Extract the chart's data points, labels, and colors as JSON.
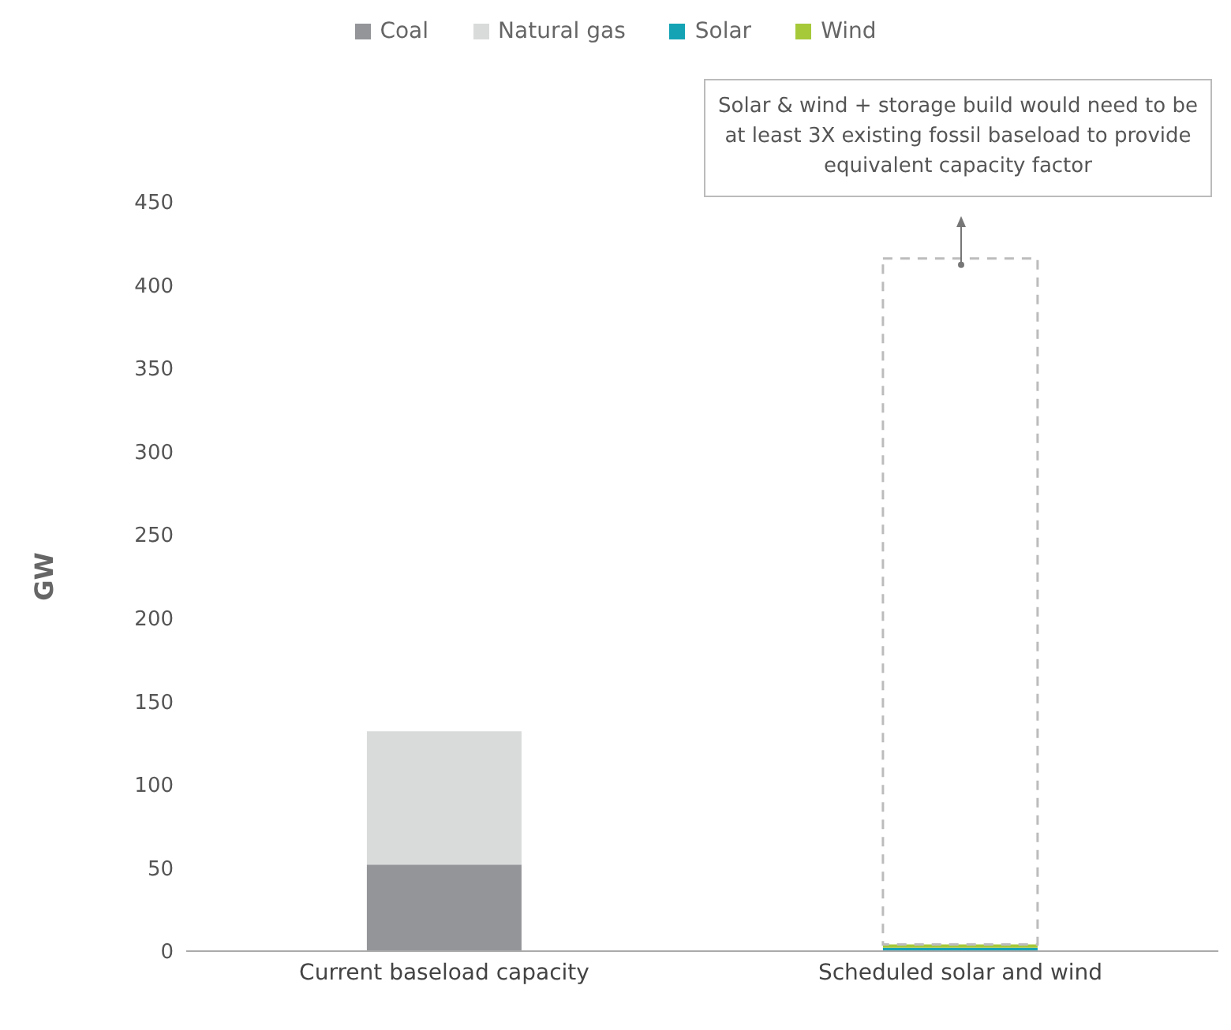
{
  "chart_data": {
    "type": "bar",
    "stacked": true,
    "ylabel": "GW",
    "categories": [
      "Current baseload capacity",
      "Scheduled solar and wind"
    ],
    "series": [
      {
        "name": "Coal",
        "color": "#939598",
        "values": [
          52,
          null
        ]
      },
      {
        "name": "Natural gas",
        "color": "#d9dbda",
        "values": [
          80,
          null
        ]
      },
      {
        "name": "Solar",
        "color": "#13a3b5",
        "values": [
          null,
          2
        ]
      },
      {
        "name": "Wind",
        "color": "#a6c93a",
        "values": [
          null,
          2
        ]
      },
      {
        "color": "#bcbcbc",
        "line_style": "dashed",
        "values": [
          null,
          412
        ]
      }
    ],
    "annotations": [
      "Solar & wind + storage build would need to be at least 3X existing fossil baseload to provide equivalent capacity factor"
    ],
    "ylim": [
      0,
      450
    ],
    "yticks": [
      0,
      50,
      100,
      150,
      200,
      250,
      300,
      350,
      400,
      450
    ],
    "grid": false,
    "legend": "top"
  }
}
